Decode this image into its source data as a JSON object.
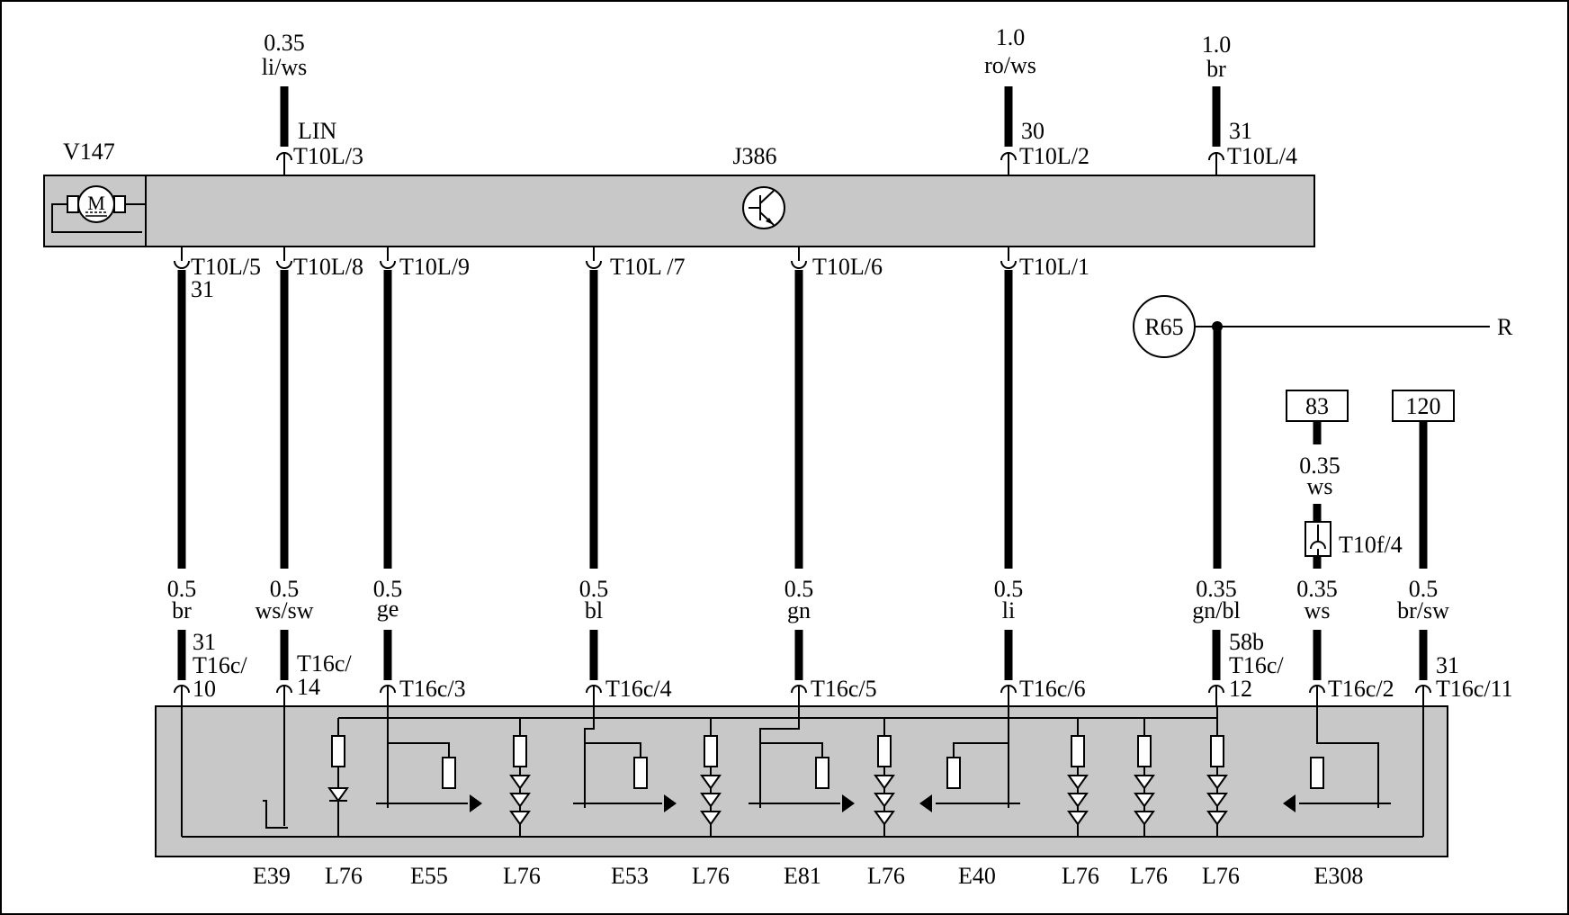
{
  "module": {
    "components": {
      "motor": "V147",
      "controller": "J386",
      "motor_symbol": "M",
      "ground_ref": "R65",
      "ground_dest": "R"
    },
    "icons": {
      "motor": "motor-icon",
      "transistor": "transistor-icon",
      "led": "led-icon",
      "switch": "switch-icon"
    }
  },
  "top_wires": [
    {
      "size": "0.35",
      "color": "li/ws",
      "signal": "LIN",
      "pin": "T10L/3"
    },
    {
      "size": "1.0",
      "color": "ro/ws",
      "signal": "30",
      "pin": "T10L/2"
    },
    {
      "size": "1.0",
      "color": "br",
      "signal": "31",
      "pin": "T10L/4"
    }
  ],
  "bottom_pins": [
    {
      "pin": "T10L/5",
      "extra": "31"
    },
    {
      "pin": "T10L/8"
    },
    {
      "pin": "T10L/9"
    },
    {
      "pin": "T10L /7"
    },
    {
      "pin": "T10L/6"
    },
    {
      "pin": "T10L/1"
    }
  ],
  "refs": {
    "a": "83",
    "b": "120"
  },
  "conn_t10f": "T10f/4",
  "lower_wires": [
    {
      "size": "0.5",
      "color": "br",
      "pin_a": "31",
      "pin_b": "T16c/",
      "pin_c": "10"
    },
    {
      "size": "0.5",
      "color": "ws/sw",
      "pin_a": "T16c/",
      "pin_b": "14"
    },
    {
      "size": "0.5",
      "color": "ge",
      "pin_a": "T16c/3"
    },
    {
      "size": "0.5",
      "color": "bl",
      "pin_a": "T16c/4"
    },
    {
      "size": "0.5",
      "color": "gn",
      "pin_a": "T16c/5"
    },
    {
      "size": "0.5",
      "color": "li",
      "pin_a": "T16c/6"
    },
    {
      "size": "0.35",
      "color": "gn/bl",
      "pin_a": "58b",
      "pin_b": "T16c/",
      "pin_c": "12"
    },
    {
      "size": "0.35",
      "color": "ws",
      "pin_a": "T16c/2"
    },
    {
      "size": "0.5",
      "color": "br/sw",
      "pin_a": "31",
      "pin_b": "T16c/11"
    }
  ],
  "ws_upper": {
    "size": "0.35",
    "color": "ws"
  },
  "bottom_labels": [
    "E39",
    "L76",
    "E55",
    "L76",
    "E53",
    "L76",
    "E81",
    "L76",
    "E40",
    "L76",
    "L76",
    "L76",
    "E308"
  ]
}
